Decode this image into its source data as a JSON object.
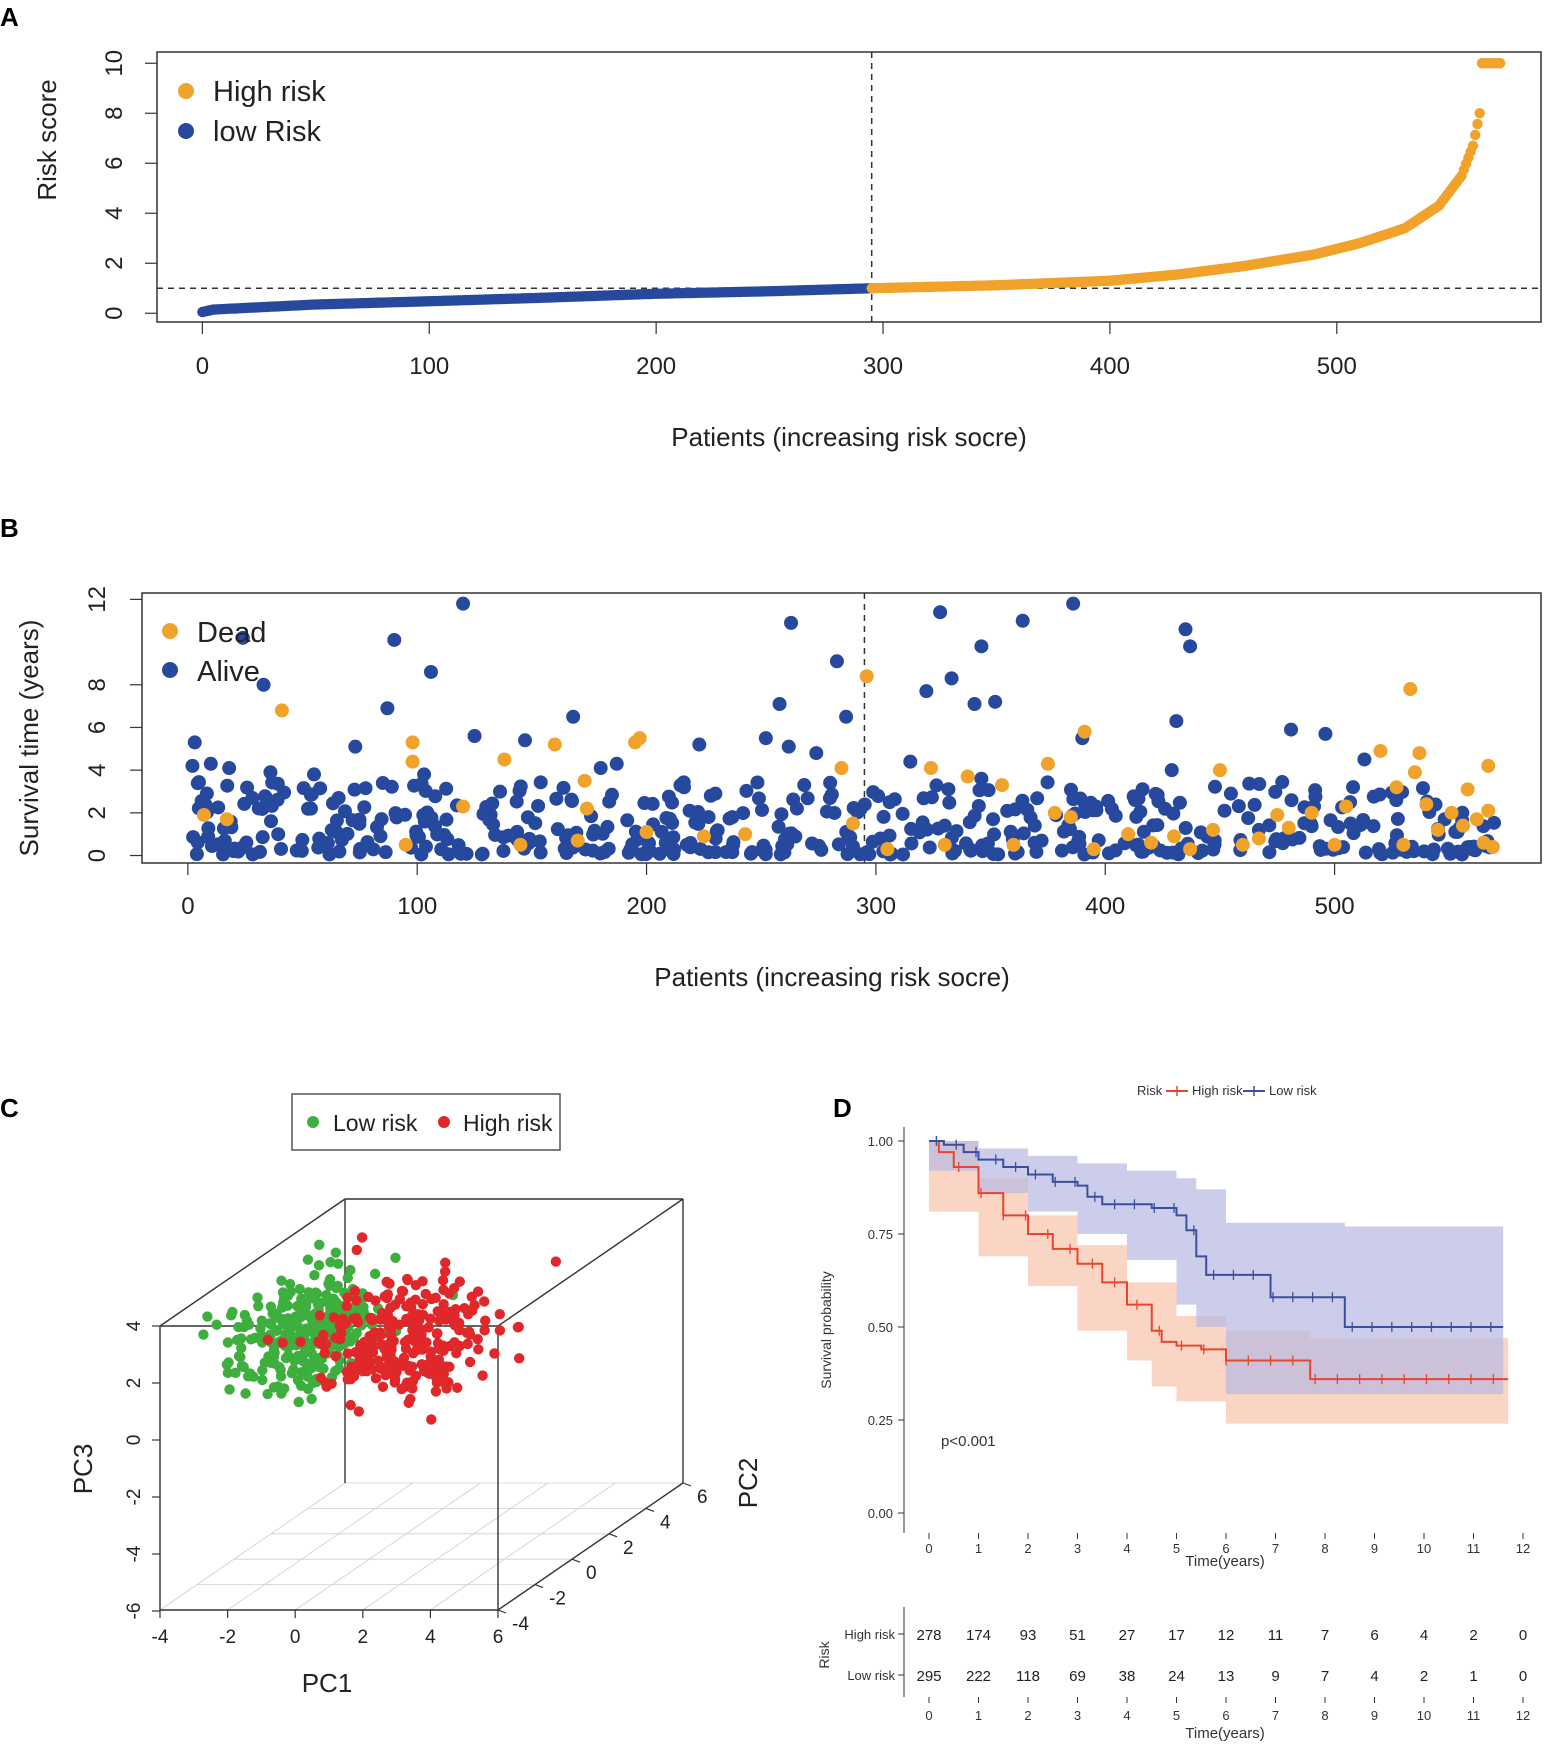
{
  "panel_labels": {
    "a": "A",
    "b": "B",
    "c": "C",
    "d": "D"
  },
  "colors": {
    "high": "#F0A22B",
    "low": "#27499D",
    "dead": "#F0A22B",
    "alive": "#27499D",
    "pca_low": "#3EAF3E",
    "pca_high": "#E0282A",
    "km_high": "#E8452F",
    "km_low": "#3B4F9E",
    "km_high_band": "#F9C7B0",
    "km_low_band": "#B7B8E3"
  },
  "chart_data": [
    {
      "id": "A",
      "type": "scatter",
      "xlabel": "Patients (increasing risk socre)",
      "ylabel": "Risk score",
      "xlim": [
        -20,
        590
      ],
      "ylim": [
        -0.35,
        10.45
      ],
      "xticks": [
        0,
        100,
        200,
        300,
        400,
        500
      ],
      "yticks": [
        0,
        2,
        4,
        6,
        8,
        10
      ],
      "cutoff_x": 295,
      "cutoff_y": 1.0,
      "n_patients": 573,
      "legend": [
        "High risk",
        "low Risk"
      ],
      "curve_anchors": [
        [
          0,
          0.05
        ],
        [
          5,
          0.15
        ],
        [
          50,
          0.35
        ],
        [
          100,
          0.48
        ],
        [
          150,
          0.62
        ],
        [
          200,
          0.78
        ],
        [
          250,
          0.88
        ],
        [
          295,
          1.0
        ],
        [
          350,
          1.12
        ],
        [
          400,
          1.3
        ],
        [
          430,
          1.55
        ],
        [
          460,
          1.9
        ],
        [
          490,
          2.35
        ],
        [
          510,
          2.8
        ],
        [
          530,
          3.4
        ],
        [
          545,
          4.3
        ],
        [
          555,
          5.5
        ],
        [
          560,
          6.7
        ],
        [
          563,
          8.0
        ],
        [
          564,
          10.0
        ],
        [
          573,
          10.0
        ]
      ],
      "series": [
        {
          "name": "low Risk",
          "range": [
            0,
            295
          ]
        },
        {
          "name": "High risk",
          "range": [
            295,
            573
          ]
        }
      ]
    },
    {
      "id": "B",
      "type": "scatter",
      "xlabel": "Patients (increasing risk socre)",
      "ylabel": "Survival time (years)",
      "xlim": [
        -20,
        590
      ],
      "ylim": [
        -0.35,
        12.3
      ],
      "xticks": [
        0,
        100,
        200,
        300,
        400,
        500
      ],
      "yticks": [
        0,
        2,
        4,
        6,
        8,
        12
      ],
      "cutoff_x": 295,
      "legend": [
        "Dead",
        "Alive"
      ],
      "series": [
        {
          "name": "Dead",
          "points": [
            [
              7,
              1.9
            ],
            [
              17,
              1.7
            ],
            [
              41,
              6.8
            ],
            [
              95,
              0.5
            ],
            [
              98,
              5.3
            ],
            [
              98,
              4.4
            ],
            [
              120,
              2.3
            ],
            [
              138,
              4.5
            ],
            [
              145,
              0.5
            ],
            [
              160,
              5.2
            ],
            [
              170,
              0.7
            ],
            [
              173,
              3.5
            ],
            [
              174,
              2.2
            ],
            [
              195,
              5.3
            ],
            [
              197,
              5.5
            ],
            [
              200,
              1.1
            ],
            [
              225,
              0.9
            ],
            [
              243,
              1.0
            ],
            [
              285,
              4.1
            ],
            [
              290,
              1.5
            ],
            [
              296,
              8.4
            ],
            [
              305,
              0.3
            ],
            [
              324,
              4.1
            ],
            [
              330,
              0.5
            ],
            [
              340,
              3.7
            ],
            [
              355,
              3.3
            ],
            [
              360,
              0.5
            ],
            [
              375,
              4.3
            ],
            [
              378,
              2.0
            ],
            [
              385,
              1.8
            ],
            [
              391,
              5.8
            ],
            [
              395,
              0.3
            ],
            [
              410,
              1.0
            ],
            [
              420,
              0.6
            ],
            [
              430,
              0.9
            ],
            [
              437,
              0.3
            ],
            [
              447,
              1.2
            ],
            [
              450,
              4.0
            ],
            [
              460,
              0.5
            ],
            [
              467,
              0.8
            ],
            [
              475,
              1.9
            ],
            [
              480,
              1.3
            ],
            [
              490,
              2.0
            ],
            [
              500,
              0.5
            ],
            [
              505,
              2.3
            ],
            [
              520,
              4.9
            ],
            [
              527,
              3.2
            ],
            [
              530,
              0.5
            ],
            [
              533,
              7.8
            ],
            [
              535,
              3.9
            ],
            [
              537,
              4.8
            ],
            [
              540,
              2.4
            ],
            [
              545,
              1.2
            ],
            [
              551,
              2.0
            ],
            [
              556,
              1.4
            ],
            [
              558,
              3.1
            ],
            [
              562,
              1.7
            ],
            [
              565,
              0.6
            ],
            [
              567,
              2.1
            ],
            [
              567,
              4.2
            ],
            [
              569,
              0.4
            ]
          ]
        },
        {
          "name": "Alive",
          "points": [
            [
              24,
              10.2
            ],
            [
              33,
              8.0
            ],
            [
              90,
              10.1
            ],
            [
              106,
              8.6
            ],
            [
              120,
              11.8
            ],
            [
              87,
              6.9
            ],
            [
              168,
              6.5
            ],
            [
              263,
              10.9
            ],
            [
              283,
              9.1
            ],
            [
              287,
              6.5
            ],
            [
              258,
              7.1
            ],
            [
              262,
              5.1
            ],
            [
              328,
              11.4
            ],
            [
              322,
              7.7
            ],
            [
              333,
              8.3
            ],
            [
              343,
              7.1
            ],
            [
              352,
              7.2
            ],
            [
              346,
              9.8
            ],
            [
              364,
              11.0
            ],
            [
              386,
              11.8
            ],
            [
              435,
              10.6
            ],
            [
              437,
              9.8
            ],
            [
              431,
              6.3
            ],
            [
              481,
              5.9
            ],
            [
              496,
              5.7
            ],
            [
              125,
              5.6
            ],
            [
              147,
              5.4
            ],
            [
              223,
              5.2
            ],
            [
              73,
              5.1
            ],
            [
              3,
              5.3
            ],
            [
              252,
              5.5
            ],
            [
              390,
              5.5
            ],
            [
              429,
              4.0
            ],
            [
              513,
              4.5
            ],
            [
              274,
              4.8
            ],
            [
              315,
              4.4
            ],
            [
              2,
              4.2
            ],
            [
              10,
              4.3
            ],
            [
              18,
              4.1
            ],
            [
              36,
              3.9
            ],
            [
              55,
              3.8
            ],
            [
              85,
              3.4
            ],
            [
              103,
              3.8
            ],
            [
              180,
              4.1
            ],
            [
              187,
              4.3
            ],
            [
              228,
              2.8
            ],
            [
              230,
              2.9
            ],
            [
              302,
              0.8
            ],
            [
              306,
              2.5
            ],
            [
              330,
              1.4
            ],
            [
              346,
              3.6
            ],
            [
              396,
              2.3
            ],
            [
              413,
              2.6
            ],
            [
              452,
              2.1
            ],
            [
              467,
              1.2
            ],
            [
              507,
              1.5
            ],
            [
              548,
              1.7
            ]
          ]
        }
      ],
      "alive_filler_count": 480
    },
    {
      "id": "C",
      "type": "scatter3d",
      "xlabel": "PC1",
      "ylabel": "PC2",
      "zlabel": "PC3",
      "legend": [
        "Low risk",
        "High risk"
      ],
      "pc1_ticks": [
        "-4",
        "-2",
        "0",
        "2",
        "4",
        "6"
      ],
      "pc2_ticks": [
        "-4",
        "-2",
        "0",
        "2",
        "4",
        "6"
      ],
      "pc3_ticks": [
        "4",
        "2",
        "0",
        "-2",
        "-4",
        "-6"
      ],
      "n_low": 295,
      "n_high": 278,
      "low_center": [
        -2.0,
        0.5,
        1.8
      ],
      "high_center": [
        1.0,
        0.0,
        1.7
      ]
    },
    {
      "id": "D",
      "type": "line",
      "title_prefix": "Risk",
      "legend": [
        "High risk",
        "Low risk"
      ],
      "xlabel": "Time(years)",
      "ylabel": "Survival probability",
      "xlim": [
        0,
        12
      ],
      "ylim": [
        0,
        1
      ],
      "xticks": [
        "0",
        "1",
        "2",
        "3",
        "4",
        "5",
        "6",
        "7",
        "8",
        "9",
        "10",
        "11",
        "12"
      ],
      "yticks": [
        "0.00",
        "0.25",
        "0.50",
        "0.75",
        "1.00"
      ],
      "pvalue": "p<0.001",
      "series": [
        {
          "name": "High risk",
          "points": [
            [
              0,
              1.0
            ],
            [
              0.2,
              0.97
            ],
            [
              0.5,
              0.93
            ],
            [
              1,
              0.86
            ],
            [
              1.5,
              0.8
            ],
            [
              2,
              0.75
            ],
            [
              2.5,
              0.71
            ],
            [
              3,
              0.67
            ],
            [
              3.5,
              0.62
            ],
            [
              4,
              0.56
            ],
            [
              4.5,
              0.49
            ],
            [
              4.7,
              0.46
            ],
            [
              5,
              0.45
            ],
            [
              5.5,
              0.44
            ],
            [
              6,
              0.41
            ],
            [
              7,
              0.41
            ],
            [
              7.5,
              0.41
            ],
            [
              7.7,
              0.36
            ],
            [
              11.7,
              0.36
            ]
          ],
          "upper": [
            [
              0,
              1.0
            ],
            [
              1,
              0.9
            ],
            [
              2,
              0.8
            ],
            [
              3,
              0.72
            ],
            [
              4,
              0.62
            ],
            [
              5,
              0.53
            ],
            [
              6,
              0.49
            ],
            [
              7.7,
              0.47
            ],
            [
              11.7,
              0.47
            ]
          ],
          "lower": [
            [
              0,
              1.0
            ],
            [
              1,
              0.81
            ],
            [
              2,
              0.69
            ],
            [
              3,
              0.61
            ],
            [
              4,
              0.49
            ],
            [
              4.5,
              0.41
            ],
            [
              5,
              0.34
            ],
            [
              6,
              0.3
            ],
            [
              7.7,
              0.24
            ],
            [
              11.7,
              0.24
            ]
          ]
        },
        {
          "name": "Low risk",
          "points": [
            [
              0,
              1.0
            ],
            [
              0.3,
              0.99
            ],
            [
              0.7,
              0.97
            ],
            [
              1,
              0.95
            ],
            [
              1.5,
              0.93
            ],
            [
              2,
              0.91
            ],
            [
              2.5,
              0.89
            ],
            [
              3,
              0.88
            ],
            [
              3.2,
              0.85
            ],
            [
              3.5,
              0.83
            ],
            [
              4,
              0.83
            ],
            [
              4.5,
              0.82
            ],
            [
              5,
              0.8
            ],
            [
              5.2,
              0.76
            ],
            [
              5.4,
              0.69
            ],
            [
              5.6,
              0.64
            ],
            [
              6,
              0.64
            ],
            [
              6.8,
              0.64
            ],
            [
              6.9,
              0.58
            ],
            [
              8.3,
              0.58
            ],
            [
              8.4,
              0.5
            ],
            [
              11.6,
              0.5
            ]
          ],
          "upper": [
            [
              0,
              1.0
            ],
            [
              1,
              0.98
            ],
            [
              2,
              0.96
            ],
            [
              3,
              0.94
            ],
            [
              4,
              0.92
            ],
            [
              5,
              0.9
            ],
            [
              5.4,
              0.87
            ],
            [
              6,
              0.78
            ],
            [
              8.4,
              0.77
            ],
            [
              11.6,
              0.77
            ]
          ],
          "lower": [
            [
              0,
              1.0
            ],
            [
              1,
              0.92
            ],
            [
              2,
              0.86
            ],
            [
              3,
              0.81
            ],
            [
              4,
              0.75
            ],
            [
              5,
              0.68
            ],
            [
              5.4,
              0.56
            ],
            [
              6,
              0.5
            ],
            [
              8.4,
              0.32
            ],
            [
              11.6,
              0.32
            ]
          ]
        }
      ],
      "risk_table": {
        "title_axis": "Risk",
        "xlabel": "Time(years)",
        "rows": [
          {
            "label": "High risk",
            "values": [
              "278",
              "174",
              "93",
              "51",
              "27",
              "17",
              "12",
              "11",
              "7",
              "6",
              "4",
              "2",
              "0"
            ]
          },
          {
            "label": "Low risk",
            "values": [
              "295",
              "222",
              "118",
              "69",
              "38",
              "24",
              "13",
              "9",
              "7",
              "4",
              "2",
              "1",
              "0"
            ]
          }
        ]
      }
    }
  ]
}
